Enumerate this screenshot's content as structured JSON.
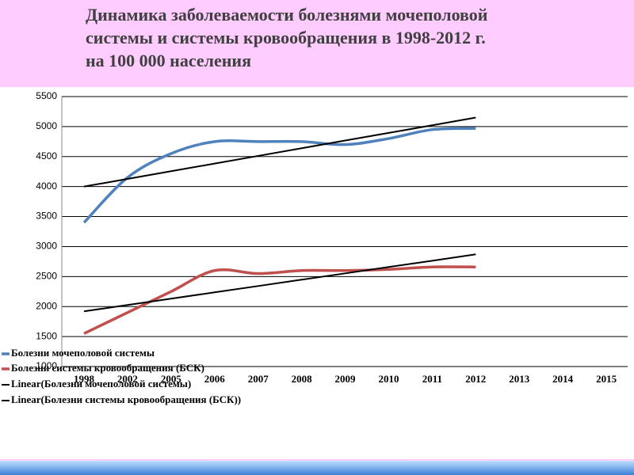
{
  "chart_data": {
    "type": "line",
    "title": [
      "Динамика заболеваемости болезнями мочеполовой",
      "системы и системы кровообращения в 1998-2012 г.",
      "на 100 000 населения"
    ],
    "categories": [
      "1998",
      "2002",
      "2005",
      "2006",
      "2007",
      "2008",
      "2009",
      "2010",
      "2011",
      "2012",
      "2013",
      "2014",
      "2015"
    ],
    "series": [
      {
        "name": "Болезни мочеполовой системы",
        "color": "#4f81bd",
        "smooth": true,
        "width": 3.5,
        "values": [
          3400,
          4150,
          4550,
          4750,
          4750,
          4750,
          4700,
          4800,
          4950,
          4970,
          null,
          null,
          null
        ]
      },
      {
        "name": "Болезни системы кровообращения (БСК)",
        "color": "#c0504d",
        "smooth": true,
        "width": 3.5,
        "values": [
          1550,
          1900,
          2250,
          2600,
          2550,
          2600,
          2600,
          2620,
          2660,
          2660,
          null,
          null,
          null
        ]
      },
      {
        "name": "Linear(Болезни мочеполовой системы)",
        "color": "#000000",
        "smooth": false,
        "width": 2,
        "values": [
          4000,
          4128,
          4256,
          4383,
          4511,
          4639,
          4767,
          4894,
          5022,
          5150,
          null,
          null,
          null
        ]
      },
      {
        "name": "Linear(Болезни системы кровообращения (БСК))",
        "color": "#000000",
        "smooth": false,
        "width": 2,
        "values": [
          1920,
          2026,
          2131,
          2237,
          2342,
          2448,
          2553,
          2659,
          2764,
          2870,
          null,
          null,
          null
        ]
      }
    ],
    "ylim": [
      1000,
      5500
    ],
    "yticks": [
      1000,
      1500,
      2000,
      2500,
      3000,
      3500,
      4000,
      4500,
      5000,
      5500
    ],
    "grid": true,
    "legend": "bottom-left"
  }
}
